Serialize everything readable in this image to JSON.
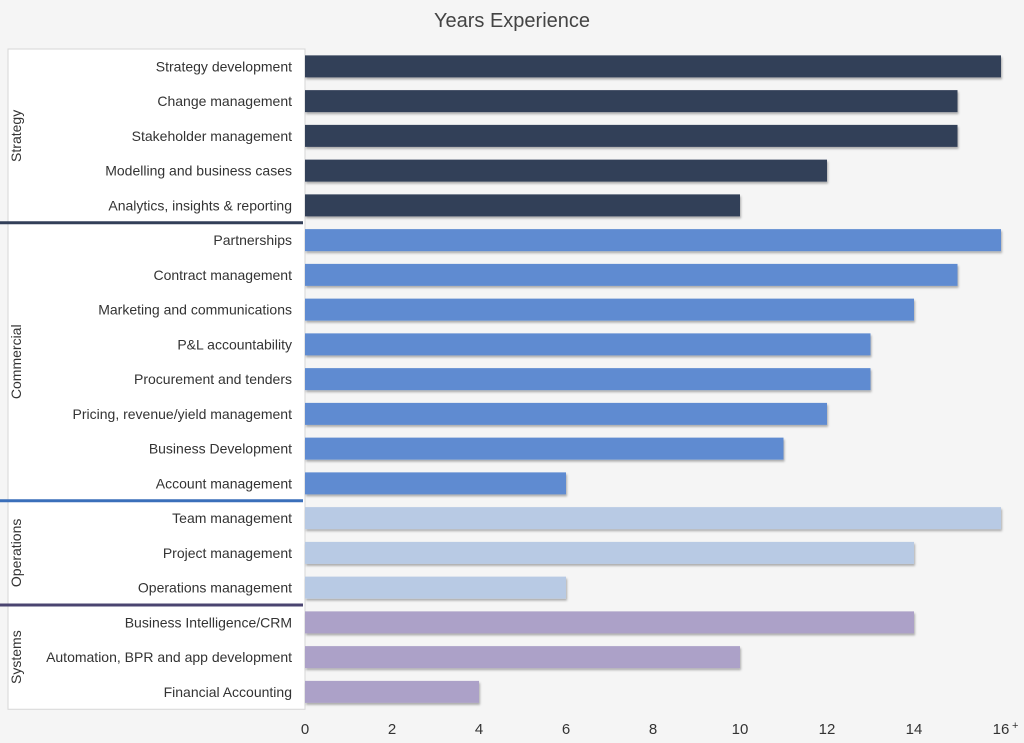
{
  "chart_data": {
    "type": "bar",
    "orientation": "horizontal",
    "title": "Years Experience",
    "xlim": [
      0,
      16
    ],
    "xticks": [
      "0",
      "2",
      "4",
      "6",
      "8",
      "10",
      "12",
      "14",
      "16"
    ],
    "last_tick_suffix": "+",
    "grid": false,
    "groups": [
      {
        "name": "Strategy",
        "color": "#323f58",
        "categories": [
          "Strategy development",
          "Change management",
          "Stakeholder management",
          "Modelling and business cases",
          "Analytics, insights & reporting"
        ],
        "values": [
          16,
          15,
          15,
          12,
          10
        ]
      },
      {
        "name": "Commercial",
        "color": "#5e8bd1",
        "categories": [
          "Partnerships",
          "Contract management",
          "Marketing and communications",
          "P&L accountability",
          "Procurement and tenders",
          "Pricing, revenue/yield management",
          "Business Development",
          "Account management"
        ],
        "values": [
          16,
          15,
          14,
          13,
          13,
          12,
          11,
          6
        ]
      },
      {
        "name": "Operations",
        "color": "#b8cae4",
        "categories": [
          "Team management",
          "Project management",
          "Operations management"
        ],
        "values": [
          16,
          14,
          6
        ]
      },
      {
        "name": "Systems",
        "color": "#aca1c8",
        "categories": [
          "Business Intelligence/CRM",
          "Automation, BPR and app development",
          "Financial Accounting"
        ],
        "values": [
          14,
          10,
          4
        ]
      }
    ],
    "separator_colors": [
      "#323f58",
      "#3a6fba",
      "#4a4470"
    ]
  }
}
